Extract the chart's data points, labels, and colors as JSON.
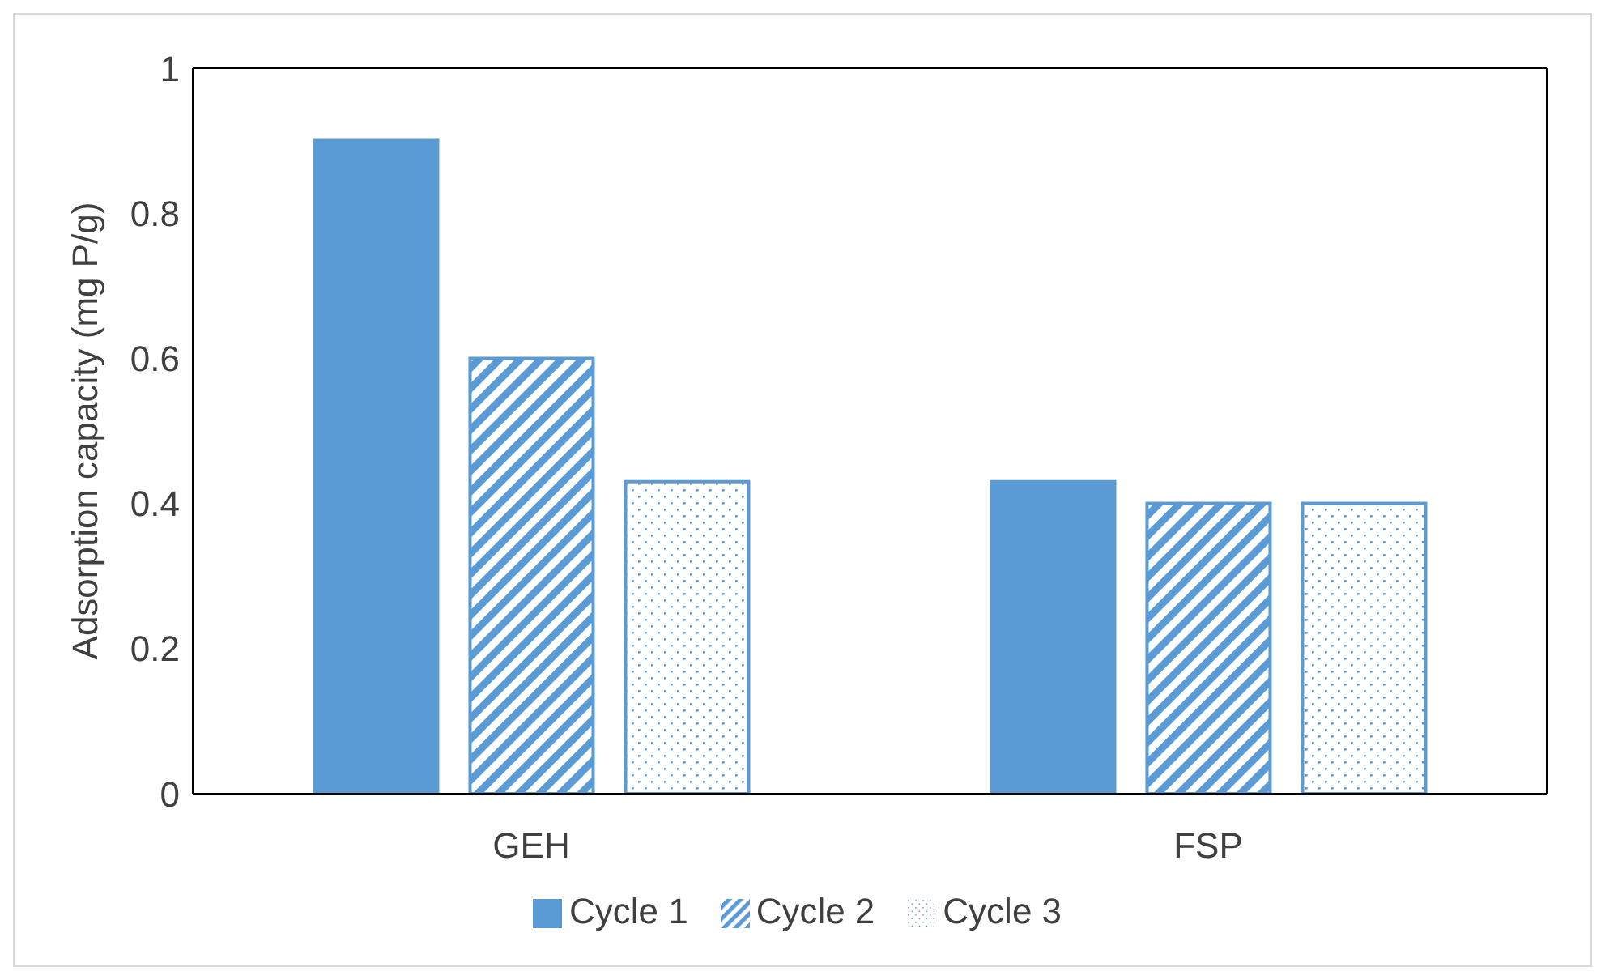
{
  "chart_data": {
    "type": "bar",
    "ylabel": "Adsorption capacity (mg P/g)",
    "categories": [
      "GEH",
      "FSP"
    ],
    "series": [
      {
        "name": "Cycle 1",
        "color": "#5b9bd5",
        "values": [
          0.9,
          0.43
        ]
      },
      {
        "name": "Cycle 2",
        "color": "#5b9bd5",
        "values": [
          0.6,
          0.4
        ]
      },
      {
        "name": "Cycle 3",
        "color": "#5b9bd5",
        "values": [
          0.43,
          0.4
        ]
      }
    ],
    "ylim": [
      0,
      1
    ],
    "yticks": [
      0,
      0.2,
      0.4,
      0.6,
      0.8,
      1
    ],
    "grid": false,
    "legend": "bottom"
  }
}
